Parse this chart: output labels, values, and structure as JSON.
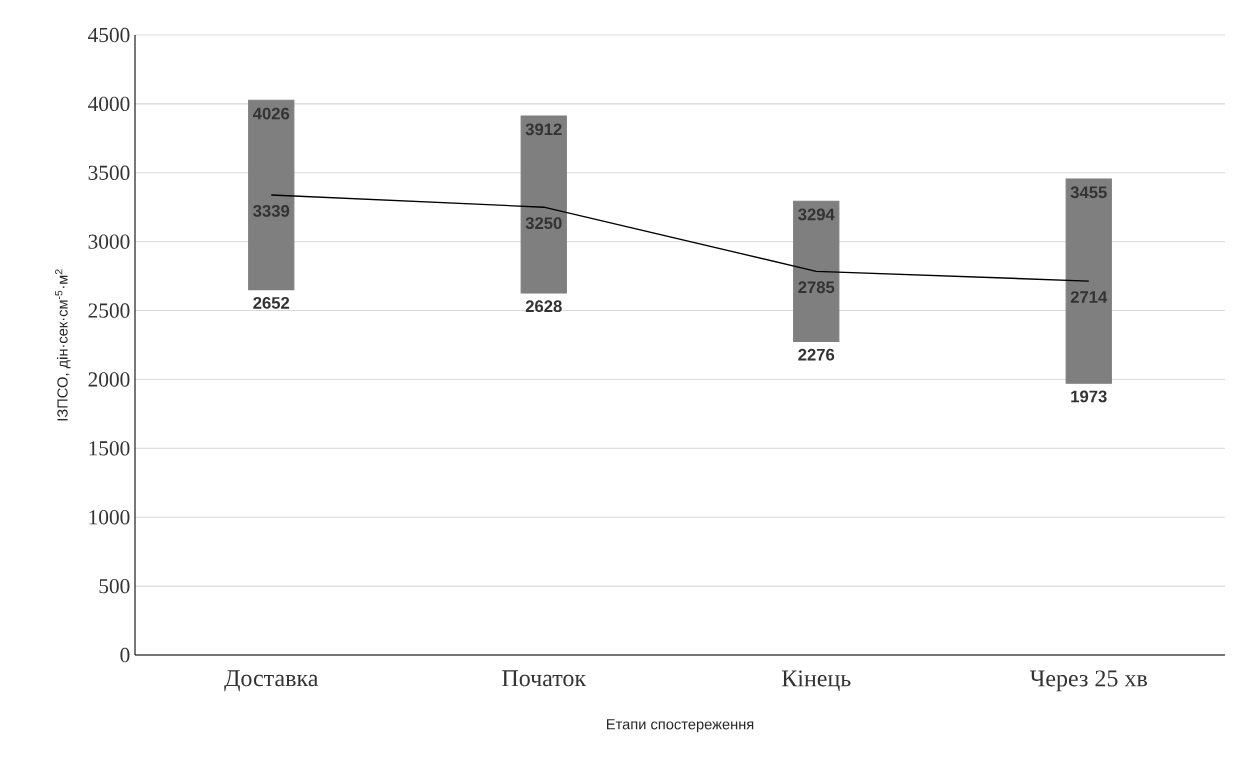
{
  "chart_data": {
    "type": "bar",
    "xlabel": "Етапи спостереження",
    "ylabel": "ІЗПСО, дін·сек·см$^{-5}$·м$^{2}$",
    "categories": [
      "Доставка",
      "Початок",
      "Кінець",
      "Через 25 хв"
    ],
    "ylim": [
      0,
      4500
    ],
    "yticks": [
      0,
      500,
      1000,
      1500,
      2000,
      2500,
      3000,
      3500,
      4000,
      4500
    ],
    "grid": "y",
    "series": [
      {
        "color": "#7f7f7f",
        "base": [
          2652,
          2628,
          2276,
          1973
        ],
        "values": [
          1374,
          1284,
          1018,
          1482
        ]
      },
      {
        "type": "line",
        "color": "#000000",
        "marker": "none",
        "line_style": "solid",
        "values": [
          3339,
          3250,
          2785,
          2714
        ],
        "value_labels": [
          "3339",
          "3250",
          "2785",
          "2714"
        ]
      }
    ],
    "annotations": [
      {
        "text": "4026",
        "x": "Доставка",
        "y": 4026
      },
      {
        "text": "2652",
        "x": "Доставка",
        "y": 2652
      },
      {
        "text": "3912",
        "x": "Початок",
        "y": 3912
      },
      {
        "text": "2628",
        "x": "Початок",
        "y": 2628
      },
      {
        "text": "3294",
        "x": "Кінець",
        "y": 3294
      },
      {
        "text": "2276",
        "x": "Кінець",
        "y": 2276
      },
      {
        "text": "3455",
        "x": "Через 25 хв",
        "y": 3455
      },
      {
        "text": "1973",
        "x": "Через 25 хв",
        "y": 1973
      }
    ]
  }
}
